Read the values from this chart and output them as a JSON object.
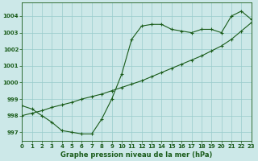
{
  "title": "Graphe pression niveau de la mer (hPa)",
  "background_color": "#cce8e8",
  "grid_color": "#99cccc",
  "line_color": "#1a5c1a",
  "x_min": 0,
  "x_max": 23,
  "y_min": 996.5,
  "y_max": 1004.8,
  "series1_x": [
    0,
    1,
    2,
    3,
    4,
    5,
    6,
    7,
    8,
    9,
    10,
    11,
    12,
    13,
    14,
    15,
    16,
    17,
    18,
    19,
    20,
    21,
    22,
    23
  ],
  "series1_y": [
    998.6,
    998.4,
    998.0,
    997.6,
    997.1,
    997.0,
    996.9,
    996.9,
    997.8,
    999.0,
    1000.5,
    1002.6,
    1003.4,
    1003.5,
    1003.5,
    1003.2,
    1003.1,
    1003.0,
    1003.2,
    1003.2,
    1003.0,
    1004.0,
    1004.3,
    1003.8
  ],
  "series2_x": [
    0,
    1,
    2,
    3,
    4,
    5,
    6,
    7,
    8,
    9,
    10,
    11,
    12,
    13,
    14,
    15,
    16,
    17,
    18,
    19,
    20,
    21,
    22,
    23
  ],
  "series2_y": [
    998.0,
    998.15,
    998.3,
    998.5,
    998.65,
    998.8,
    999.0,
    999.15,
    999.3,
    999.5,
    999.7,
    999.9,
    1000.1,
    1000.35,
    1000.6,
    1000.85,
    1001.1,
    1001.35,
    1001.6,
    1001.9,
    1002.2,
    1002.6,
    1003.1,
    1003.6
  ],
  "yticks": [
    997,
    998,
    999,
    1000,
    1001,
    1002,
    1003,
    1004
  ],
  "xticks": [
    0,
    1,
    2,
    3,
    4,
    5,
    6,
    7,
    8,
    9,
    10,
    11,
    12,
    13,
    14,
    15,
    16,
    17,
    18,
    19,
    20,
    21,
    22,
    23
  ],
  "tick_fontsize": 5,
  "label_fontsize": 6,
  "marker_size": 2,
  "line_width": 0.8
}
